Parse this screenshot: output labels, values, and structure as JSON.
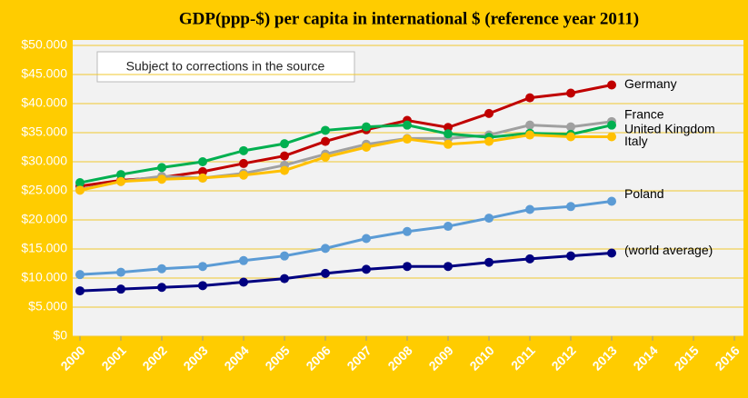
{
  "chart_data": {
    "type": "line",
    "title": "GDP(ppp-$) per capita in international $ (reference year 2011)",
    "annotation": "Subject to corrections  in the source",
    "x": [
      2000,
      2001,
      2002,
      2003,
      2004,
      2005,
      2006,
      2007,
      2008,
      2009,
      2010,
      2011,
      2012,
      2013
    ],
    "xlim": [
      2000,
      2016
    ],
    "xticks": [
      2000,
      2001,
      2002,
      2003,
      2004,
      2005,
      2006,
      2007,
      2008,
      2009,
      2010,
      2011,
      2012,
      2013,
      2014,
      2015,
      2016
    ],
    "ylim": [
      0,
      50000
    ],
    "yticks": [
      {
        "value": 0,
        "label": "$0"
      },
      {
        "value": 5000,
        "label": "$5.000"
      },
      {
        "value": 10000,
        "label": "$10.000"
      },
      {
        "value": 15000,
        "label": "$15.000"
      },
      {
        "value": 20000,
        "label": "$20.000"
      },
      {
        "value": 25000,
        "label": "$25.000"
      },
      {
        "value": 30000,
        "label": "$30.000"
      },
      {
        "value": 35000,
        "label": "$35.000"
      },
      {
        "value": 40000,
        "label": "$40.000"
      },
      {
        "value": 45000,
        "label": "$45.000"
      },
      {
        "value": 50000,
        "label": "$50.000"
      }
    ],
    "grid": true,
    "series": [
      {
        "name": "Germany",
        "color": "#c00000",
        "values": [
          25800,
          26800,
          27300,
          28300,
          29700,
          31000,
          33500,
          35500,
          37100,
          35900,
          38300,
          41000,
          41800,
          43200
        ]
      },
      {
        "name": "France",
        "color": "#a0a0a0",
        "values": [
          25200,
          26600,
          27500,
          27200,
          28000,
          29400,
          31300,
          33000,
          34000,
          34000,
          34600,
          36300,
          36000,
          36900
        ]
      },
      {
        "name": "United Kingdom",
        "color": "#00b050",
        "values": [
          26400,
          27800,
          29000,
          30000,
          31900,
          33100,
          35400,
          36000,
          36300,
          34800,
          34200,
          34900,
          34700,
          36300
        ]
      },
      {
        "name": "Italy",
        "color": "#ffc000",
        "values": [
          25100,
          26600,
          27000,
          27200,
          27700,
          28500,
          30800,
          32500,
          33900,
          33000,
          33500,
          34600,
          34300,
          34300
        ]
      },
      {
        "name": "Poland",
        "color": "#5b9bd5",
        "values": [
          10600,
          11000,
          11600,
          12000,
          13000,
          13800,
          15100,
          16800,
          18000,
          18900,
          20300,
          21800,
          22300,
          23200
        ]
      },
      {
        "name": "(world average)",
        "color": "#000080",
        "values": [
          7800,
          8100,
          8400,
          8700,
          9300,
          9900,
          10800,
          11500,
          12000,
          12000,
          12700,
          13300,
          13800,
          14300
        ]
      }
    ]
  }
}
